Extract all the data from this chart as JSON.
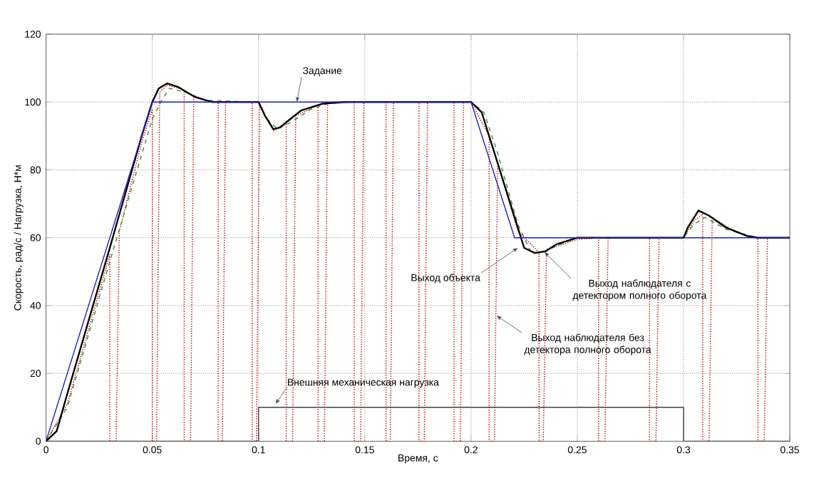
{
  "chart_data": {
    "type": "line",
    "xlabel": "Время, с",
    "ylabel": "Скорость, рад/с  /  Нагрузка, Н*м",
    "xlim": [
      0,
      0.35
    ],
    "ylim": [
      0,
      120
    ],
    "xticks": [
      0,
      0.05,
      0.1,
      0.15,
      0.2,
      0.25,
      0.3,
      0.35
    ],
    "yticks": [
      0,
      20,
      40,
      60,
      80,
      100,
      120
    ],
    "grid": true,
    "series": [
      {
        "color": "#c00000",
        "line_style": "dotted",
        "x": [
          0,
          0.01,
          0.03,
          0.03,
          0.033,
          0.0345,
          0.045,
          0.05,
          0.05,
          0.052,
          0.0535,
          0.057,
          0.065,
          0.065,
          0.068,
          0.0695,
          0.075,
          0.081,
          0.081,
          0.083,
          0.0845,
          0.097,
          0.097,
          0.099,
          0.1005,
          0.107,
          0.113,
          0.113,
          0.116,
          0.1175,
          0.128,
          0.128,
          0.131,
          0.1325,
          0.145,
          0.145,
          0.148,
          0.1495,
          0.16,
          0.16,
          0.162,
          0.1635,
          0.1755,
          0.1755,
          0.178,
          0.1795,
          0.192,
          0.192,
          0.195,
          0.1965,
          0.2,
          0.2085,
          0.2085,
          0.211,
          0.2125,
          0.222,
          0.232,
          0.232,
          0.234,
          0.2355,
          0.25,
          0.26,
          0.26,
          0.263,
          0.2645,
          0.284,
          0.284,
          0.287,
          0.2885,
          0.3,
          0.305,
          0.309,
          0.309,
          0.312,
          0.3135,
          0.325,
          0.335,
          0.335,
          0.338,
          0.3395,
          0.35
        ],
        "values": [
          0,
          11,
          55,
          0,
          0,
          62,
          88,
          98,
          0,
          0,
          103,
          105,
          103.5,
          0,
          0,
          102,
          100.5,
          100,
          0,
          0,
          100,
          100,
          0,
          0,
          99,
          91.5,
          93.5,
          0,
          0,
          96,
          99,
          0,
          0,
          99.5,
          100,
          0,
          0,
          100,
          100,
          0,
          0,
          100,
          100,
          0,
          0,
          100,
          100,
          0,
          0,
          100,
          100,
          90,
          0,
          0,
          82,
          62,
          55.7,
          0,
          0,
          56.5,
          59.5,
          60,
          0,
          0,
          60,
          60,
          0,
          0,
          60,
          60,
          65,
          67,
          0,
          0,
          66,
          61.5,
          60,
          0,
          0,
          60,
          60
        ]
      },
      {
        "color": "#3c8c3c",
        "line_style": "dashed",
        "x": [
          0,
          0.01,
          0.03,
          0.05,
          0.054,
          0.058,
          0.065,
          0.075,
          0.1,
          0.104,
          0.109,
          0.115,
          0.125,
          0.135,
          0.2,
          0.206,
          0.212,
          0.222,
          0.228,
          0.233,
          0.24,
          0.25,
          0.3,
          0.305,
          0.31,
          0.32,
          0.335,
          0.35
        ],
        "values": [
          0,
          10,
          53,
          95,
          100,
          104,
          103,
          100.5,
          100,
          95,
          92,
          94,
          98,
          100,
          100,
          97,
          86,
          64,
          56,
          55.5,
          57.5,
          60,
          60,
          64,
          66,
          62.5,
          60,
          60
        ]
      },
      {
        "color": "#000000",
        "line_style": "solid",
        "x": [
          0,
          0.005,
          0.01,
          0.03,
          0.045,
          0.05,
          0.053,
          0.057,
          0.062,
          0.07,
          0.078,
          0.1,
          0.103,
          0.107,
          0.11,
          0.115,
          0.12,
          0.13,
          0.14,
          0.2,
          0.205,
          0.21,
          0.22,
          0.225,
          0.23,
          0.235,
          0.24,
          0.25,
          0.3,
          0.302,
          0.307,
          0.312,
          0.32,
          0.33,
          0.335,
          0.35
        ],
        "values": [
          0,
          3,
          14,
          57,
          90,
          100,
          104,
          105.5,
          104.5,
          101.5,
          100,
          100,
          96,
          92,
          92.5,
          95,
          97.5,
          99.5,
          100,
          100,
          97,
          87,
          67,
          57,
          55.5,
          56,
          58,
          60,
          60,
          63,
          68,
          66.5,
          63,
          60.5,
          60,
          60
        ]
      },
      {
        "color": "#2020c0",
        "line_style": "solid",
        "x": [
          0,
          0.05,
          0.2,
          0.2205,
          0.35
        ],
        "values": [
          0,
          100,
          100,
          60,
          60
        ]
      },
      {
        "color": "#404040",
        "line_style": "solid",
        "x": [
          0,
          0.1,
          0.1,
          0.3,
          0.3,
          0.35
        ],
        "values": [
          0,
          0,
          10,
          10,
          0,
          0
        ]
      }
    ],
    "annotations": [
      {
        "text": "Задание",
        "x": 0.118,
        "y": 100
      },
      {
        "text": "Внешняя механическая нагрузка",
        "x": 0.108,
        "y": 11
      },
      {
        "text": "Выход объекта",
        "x": 0.222,
        "y": 57
      },
      {
        "text": "Выход наблюдателя с детектором полного оборота",
        "x": 0.2345,
        "y": 55.8
      },
      {
        "text": "Выход наблюдателя без детектора полного оборота",
        "x": 0.212,
        "y": 37
      }
    ]
  }
}
